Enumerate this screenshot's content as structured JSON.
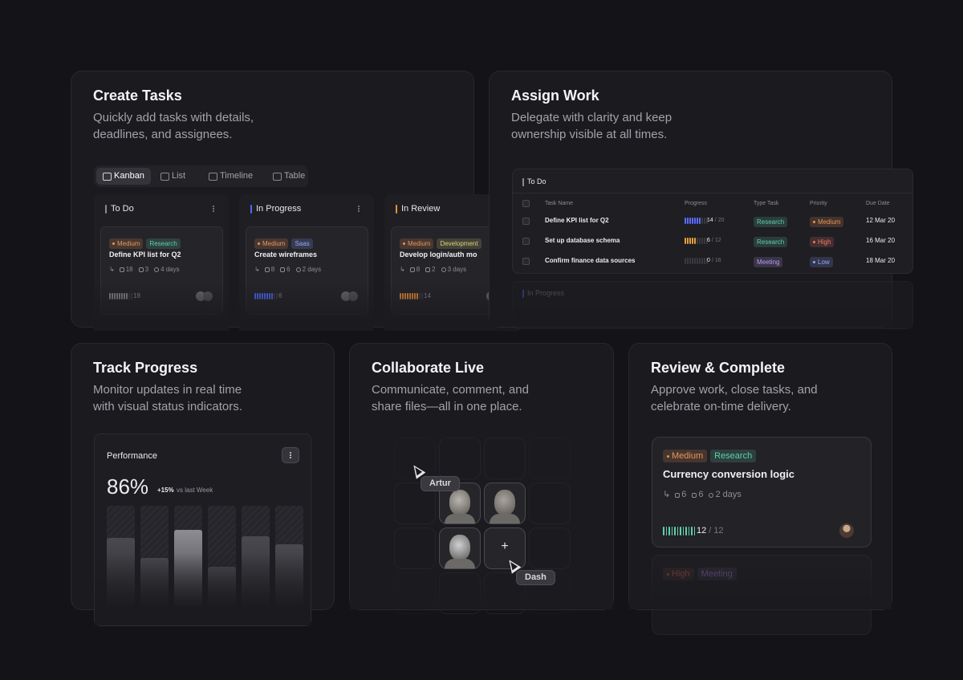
{
  "cards": [
    {
      "title": "Create Tasks",
      "description": "Quickly add tasks with details, deadlines, and assignees.",
      "tabs": [
        "Kanban",
        "List",
        "Timeline",
        "Table"
      ],
      "columns": [
        {
          "name": "To Do",
          "color": "#8a8a90",
          "task": {
            "tags": [
              {
                "text": "Medium",
                "color": "#e8955a"
              },
              {
                "text": "Research",
                "color": "#5fcfa8"
              }
            ],
            "title": "Define KPI list for Q2",
            "comments": 18,
            "files": 3,
            "due": "4 days",
            "progress": 18
          }
        },
        {
          "name": "In Progress",
          "color": "#4d6bff",
          "task": {
            "tags": [
              {
                "text": "Medium",
                "color": "#e8955a"
              },
              {
                "text": "Saas",
                "color": "#8fa8ff"
              }
            ],
            "title": "Create wireframes",
            "comments": 8,
            "files": 6,
            "due": "2 days",
            "progress": 6
          }
        },
        {
          "name": "In Review",
          "color": "#e8903a",
          "task": {
            "tags": [
              {
                "text": "Medium",
                "color": "#e8955a"
              },
              {
                "text": "Development",
                "color": "#d8d07a"
              }
            ],
            "title": "Develop login/auth mo",
            "comments": 8,
            "files": 2,
            "due": "3 days",
            "progress": 14
          }
        }
      ]
    },
    {
      "title": "Assign Work",
      "description": "Delegate with clarity and keep ownership visible at all times.",
      "groups": [
        "To Do",
        "In Progress"
      ],
      "headers": [
        "Task Name",
        "Progress",
        "Type Task",
        "Priority",
        "Due Date"
      ],
      "progress_separator": "/",
      "rows": [
        {
          "task": "Define KPI list for Q2",
          "done": 14,
          "total": 20,
          "progress_color": "#5a6dff",
          "type": {
            "text": "Research",
            "color": "#5fcfa8"
          },
          "priority": {
            "text": "Medium",
            "color": "#e8955a"
          },
          "due": "12 Mar 20"
        },
        {
          "task": "Set up database schema",
          "done": 6,
          "total": 12,
          "progress_color": "#e8a03a",
          "type": {
            "text": "Research",
            "color": "#5fcfa8"
          },
          "priority": {
            "text": "High",
            "color": "#f07a6a"
          },
          "due": "16 Mar 20"
        },
        {
          "task": "Confirm finance data sources",
          "done": 0,
          "total": 16,
          "progress_color": "#8a8a90",
          "type": {
            "text": "Meeting",
            "color": "#b59cf0"
          },
          "priority": {
            "text": "Low",
            "color": "#8fa8ff"
          },
          "due": "18 Mar 20"
        }
      ]
    },
    {
      "title": "Track Progress",
      "description": "Monitor updates in real time with visual status indicators.",
      "widget": {
        "title": "Performance",
        "value": "86%",
        "change": "+15%",
        "change_note": "vs last Week",
        "bars": [
          68,
          48,
          76,
          39,
          70,
          62
        ]
      }
    },
    {
      "title": "Collaborate Live",
      "description": "Communicate, comment, and share files—all in one place.",
      "cursors": [
        "Artur",
        "Dash"
      ],
      "add_label": "+"
    },
    {
      "title": "Review & Complete",
      "description": "Approve work, close tasks, and celebrate on-time delivery.",
      "task": {
        "tags": [
          {
            "text": "Medium",
            "color": "#e8955a"
          },
          {
            "text": "Research",
            "color": "#5fcfa8"
          }
        ],
        "title": "Currency conversion logic",
        "comments": 6,
        "files": 6,
        "due": "2 days",
        "done": 12,
        "total": 12,
        "progress_color": "#5fcfa8"
      },
      "next_task": {
        "tags": [
          {
            "text": "High",
            "color": "#f07a6a"
          },
          {
            "text": "Meeting",
            "color": "#b59cf0"
          }
        ]
      }
    }
  ]
}
